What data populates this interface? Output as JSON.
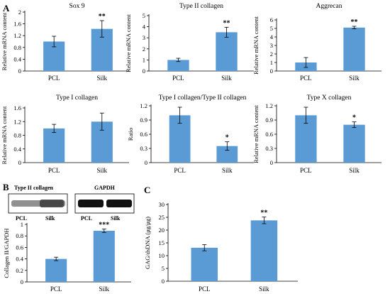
{
  "panel_letters": [
    "A",
    "B",
    "C"
  ],
  "colors": {
    "bar": "#5b9bd5",
    "axis": "#000000",
    "error": "#000000"
  },
  "blot": {
    "left_label": "Type II collagen",
    "right_label": "GAPDH",
    "lanes": [
      "PCL",
      "Silk",
      "PCL",
      "Silk"
    ]
  },
  "chart_data": [
    {
      "type": "bar",
      "title": "Sox 9",
      "ylabel": "Relative mRNA content",
      "categories": [
        "PCL",
        "Silk"
      ],
      "values": [
        1.0,
        1.43
      ],
      "errors": [
        0.18,
        0.28
      ],
      "significance": [
        "",
        "**"
      ],
      "ylim": [
        0,
        2.0
      ],
      "yticks": [
        "0",
        "0.4",
        "0.8",
        "1.2",
        "1.6",
        "2"
      ]
    },
    {
      "type": "bar",
      "title": "Type II collagen",
      "ylabel": "Relative mRNA content",
      "categories": [
        "PCL",
        "Silk"
      ],
      "values": [
        1.0,
        3.5
      ],
      "errors": [
        0.15,
        0.45
      ],
      "significance": [
        "",
        "**"
      ],
      "ylim": [
        0,
        5
      ],
      "yticks": [
        "0",
        "1",
        "2",
        "3",
        "4",
        "5"
      ]
    },
    {
      "type": "bar",
      "title": "Aggrecan",
      "ylabel": "Relative mRNA content",
      "categories": [
        "PCL",
        "Silk"
      ],
      "values": [
        1.0,
        5.1
      ],
      "errors": [
        0.58,
        0.15
      ],
      "significance": [
        "",
        "**"
      ],
      "ylim": [
        0,
        6
      ],
      "yticks": [
        "0",
        "1",
        "2",
        "3",
        "4",
        "5",
        "6"
      ]
    },
    {
      "type": "bar",
      "title": "Type I collagen",
      "ylabel": "Relative mRNA content",
      "categories": [
        "PCL",
        "Silk"
      ],
      "values": [
        1.0,
        1.2
      ],
      "errors": [
        0.12,
        0.25
      ],
      "significance": [
        "",
        ""
      ],
      "ylim": [
        0,
        1.6
      ],
      "yticks": [
        "0",
        "0.4",
        "0.8",
        "1.2",
        "1.6"
      ]
    },
    {
      "type": "bar",
      "title": "Type I collagen/Type II collagen",
      "ylabel": "Ratio",
      "categories": [
        "PCL",
        "Silk"
      ],
      "values": [
        1.0,
        0.35
      ],
      "errors": [
        0.17,
        0.09
      ],
      "significance": [
        "",
        "*"
      ],
      "ylim": [
        0,
        1.2
      ],
      "yticks": [
        "0",
        "0.3",
        "0.6",
        "0.9",
        "1.2"
      ]
    },
    {
      "type": "bar",
      "title": "Type X collagen",
      "ylabel": "Relative mRNA content",
      "categories": [
        "PCL",
        "Silk"
      ],
      "values": [
        1.0,
        0.8
      ],
      "errors": [
        0.17,
        0.06
      ],
      "significance": [
        "",
        "*"
      ],
      "ylim": [
        0,
        1.2
      ],
      "yticks": [
        "0",
        "0.3",
        "0.6",
        "0.9",
        "1.2"
      ]
    },
    {
      "type": "bar",
      "title": "",
      "ylabel": "Collagen II/GAPDH",
      "categories": [
        "PCL",
        "Silk"
      ],
      "values": [
        0.4,
        0.89
      ],
      "errors": [
        0.03,
        0.03
      ],
      "significance": [
        "",
        "***"
      ],
      "ylim": [
        0,
        1
      ],
      "yticks": [
        "0",
        "0.2",
        "0.4",
        "0.6",
        "0.8",
        "1"
      ]
    },
    {
      "type": "bar",
      "title": "",
      "ylabel": "GAG/dsDNA (μg/μg)",
      "categories": [
        "PCL",
        "Silk"
      ],
      "values": [
        13.1,
        23.8
      ],
      "errors": [
        1.2,
        1.3
      ],
      "significance": [
        "",
        "**"
      ],
      "ylim": [
        0,
        30
      ],
      "yticks": [
        "0",
        "5",
        "10",
        "15",
        "20",
        "25",
        "30"
      ]
    }
  ]
}
